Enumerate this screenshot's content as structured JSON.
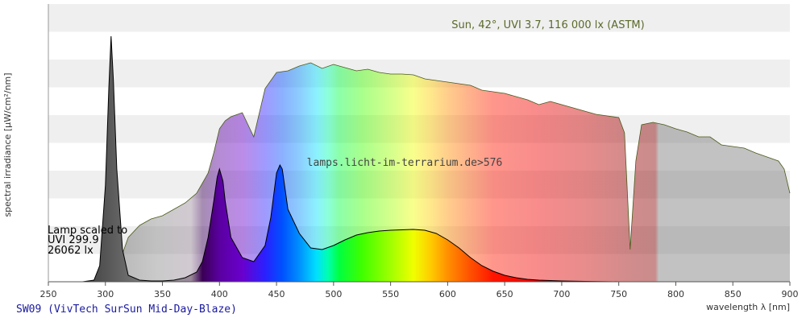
{
  "chart_data": {
    "type": "area",
    "xlabel": "wavelength λ [nm]",
    "ylabel": "spectral irradiance [µW/cm²/nm]",
    "xlim": [
      250,
      900
    ],
    "x_ticks": [
      250,
      300,
      350,
      400,
      450,
      500,
      550,
      600,
      650,
      700,
      750,
      800,
      850,
      900
    ],
    "grid": "horizontal bands",
    "annotations": {
      "sun": "Sun, 42°, UVI 3.7, 116 000 lx (ASTM)",
      "watermark": "lamps.licht-im-terrarium.de>576",
      "lamp_scaled": [
        "Lamp scaled to",
        "UVI 299.9",
        "26062 lx"
      ],
      "lamp_name": "SW09 (VivTech SurSun Mid-Day-Blaze)"
    },
    "series": [
      {
        "name": "Sun, 42°, UVI 3.7, 116 000 lx (ASTM)",
        "x": [
          295,
          300,
          305,
          310,
          315,
          320,
          330,
          340,
          350,
          360,
          370,
          380,
          390,
          395,
          400,
          405,
          410,
          420,
          430,
          440,
          450,
          460,
          470,
          480,
          490,
          500,
          510,
          520,
          530,
          540,
          550,
          560,
          570,
          580,
          590,
          600,
          610,
          620,
          630,
          640,
          650,
          660,
          670,
          680,
          690,
          700,
          710,
          720,
          730,
          740,
          750,
          755,
          760,
          765,
          770,
          780,
          790,
          800,
          810,
          820,
          830,
          840,
          850,
          860,
          870,
          880,
          890,
          895,
          900
        ],
        "y": [
          0,
          2,
          8,
          18,
          35,
          55,
          70,
          78,
          82,
          90,
          98,
          110,
          135,
          160,
          190,
          200,
          205,
          210,
          180,
          240,
          260,
          262,
          268,
          272,
          265,
          270,
          266,
          262,
          264,
          260,
          258,
          258,
          257,
          252,
          250,
          248,
          246,
          244,
          238,
          236,
          234,
          230,
          226,
          220,
          224,
          220,
          216,
          212,
          208,
          206,
          204,
          185,
          40,
          150,
          195,
          198,
          195,
          190,
          186,
          180,
          180,
          170,
          168,
          166,
          160,
          155,
          150,
          140,
          110
        ]
      },
      {
        "name": "SW09 (VivTech SurSun Mid-Day-Blaze)",
        "x": [
          280,
          290,
          295,
          300,
          303,
          305,
          307,
          310,
          315,
          320,
          330,
          340,
          350,
          360,
          370,
          380,
          385,
          390,
          395,
          398,
          400,
          403,
          405,
          410,
          420,
          430,
          440,
          445,
          450,
          453,
          455,
          458,
          460,
          465,
          470,
          480,
          490,
          500,
          510,
          520,
          530,
          540,
          550,
          560,
          570,
          580,
          590,
          600,
          610,
          620,
          630,
          640,
          650,
          660,
          670,
          680,
          700,
          720,
          750,
          780,
          800
        ],
        "y": [
          0,
          2,
          20,
          120,
          240,
          305,
          250,
          140,
          40,
          8,
          2,
          1,
          1,
          2,
          5,
          12,
          25,
          55,
          100,
          130,
          140,
          125,
          100,
          55,
          30,
          25,
          45,
          80,
          135,
          145,
          140,
          110,
          90,
          75,
          60,
          42,
          40,
          45,
          52,
          58,
          61,
          63,
          64,
          64.5,
          65,
          64,
          60,
          52,
          42,
          30,
          20,
          13,
          8,
          5,
          3,
          2,
          1,
          0.5,
          0,
          0,
          0
        ]
      }
    ]
  }
}
